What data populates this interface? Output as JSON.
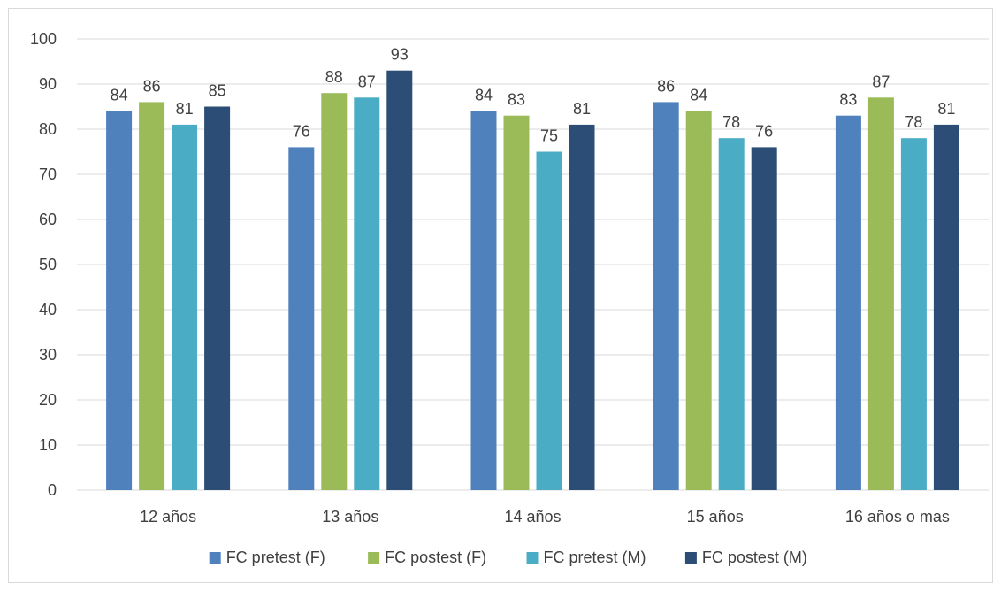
{
  "chart_data": {
    "type": "bar",
    "categories": [
      "12 años",
      "13 años",
      "14 años",
      "15 años",
      "16 años o mas"
    ],
    "series": [
      {
        "name": "FC pretest (F)",
        "color": "#4F81BD",
        "values": [
          84,
          76,
          84,
          86,
          83
        ]
      },
      {
        "name": "FC postest (F)",
        "color": "#9BBB59",
        "values": [
          86,
          88,
          83,
          84,
          87
        ]
      },
      {
        "name": "FC pretest (M)",
        "color": "#4BACC6",
        "values": [
          81,
          87,
          75,
          78,
          78
        ]
      },
      {
        "name": "FC postest (M)",
        "color": "#2C4D75",
        "values": [
          85,
          93,
          81,
          76,
          81
        ]
      }
    ],
    "ylim": [
      0,
      100
    ],
    "yticks": [
      0,
      10,
      20,
      30,
      40,
      50,
      60,
      70,
      80,
      90,
      100
    ],
    "grid": true,
    "legend": "bottom",
    "data_labels": true,
    "gridline_color": "#d9d9d9",
    "label_color": "#404040"
  }
}
